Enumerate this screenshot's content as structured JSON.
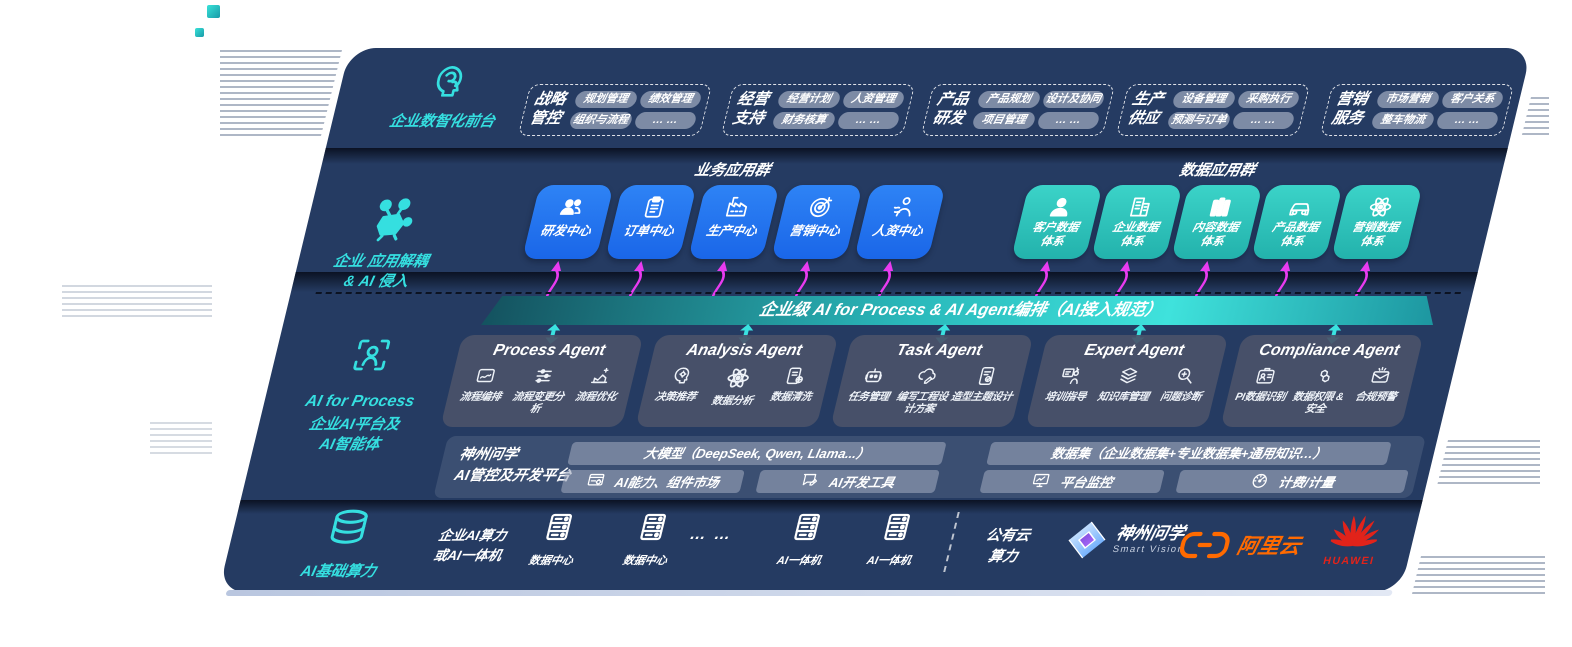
{
  "colors": {
    "panel_navy": "#253B62",
    "accent_cyan": "#35DFE0",
    "magenta_arrow": "#E83BF0",
    "blue_tile": "#1E6FF0",
    "teal_tile": "#2EC7BE",
    "chip_grey": "#96A1B8",
    "agent_card": "#4A5269",
    "aliyun_orange": "#FF6A00",
    "huawei_red": "#E2231A"
  },
  "front_office": {
    "icon": "brain-icon",
    "label": "企业数智化前台",
    "groups": [
      {
        "title": "战略\n管控",
        "chips": [
          "规划管理",
          "绩效管理",
          "组织与流程",
          "… …"
        ]
      },
      {
        "title": "经营\n支持",
        "chips": [
          "经营计划",
          "人资管理",
          "财务核算",
          "… …"
        ]
      },
      {
        "title": "产品\n研发",
        "chips": [
          "产品规划",
          "设计及协同",
          "项目管理",
          "… …"
        ]
      },
      {
        "title": "生产\n供应",
        "chips": [
          "设备管理",
          "采购执行",
          "预测与订单",
          "… …"
        ]
      },
      {
        "title": "营销\n服务",
        "chips": [
          "市场营销",
          "客户关系",
          "整车物流",
          "… …"
        ]
      }
    ]
  },
  "app_layer": {
    "icon": "molecule-icon",
    "label": "企业 应用解耦\n& AI 侵入",
    "business_group": {
      "title": "业务应用群",
      "tiles": [
        {
          "label": "研发中心",
          "icon": "team-icon"
        },
        {
          "label": "订单中心",
          "icon": "clipboard-icon"
        },
        {
          "label": "生产中心",
          "icon": "factory-icon"
        },
        {
          "label": "营销中心",
          "icon": "target-icon"
        },
        {
          "label": "人资中心",
          "icon": "hr-icon"
        }
      ]
    },
    "data_group": {
      "title": "数据应用群",
      "tiles": [
        {
          "label": "客户数据\n体系",
          "icon": "user-icon"
        },
        {
          "label": "企业数据\n体系",
          "icon": "building-icon"
        },
        {
          "label": "内容数据\n体系",
          "icon": "books-icon"
        },
        {
          "label": "产品数据\n体系",
          "icon": "car-icon"
        },
        {
          "label": "营销数据\n体系",
          "icon": "atom-icon"
        }
      ]
    }
  },
  "ai_bus": {
    "label": "企业级 AI for Process & AI Agent编排（AI接入规范）"
  },
  "ai_layer": {
    "icon": "scan-person-icon",
    "label_en": "AI for Process",
    "label_cn": "企业AI平台及\nAI智能体",
    "agents": [
      {
        "name": "Process Agent",
        "items": [
          {
            "label": "流程编排",
            "icon": "flow-icon"
          },
          {
            "label": "流程变更分析",
            "icon": "sliders-icon"
          },
          {
            "label": "流程优化",
            "icon": "optimize-icon"
          }
        ]
      },
      {
        "name": "Analysis Agent",
        "items": [
          {
            "label": "决策推荐",
            "icon": "head-gear-icon"
          },
          {
            "label": "数据分析",
            "icon": "atom-icon"
          },
          {
            "label": "数据清洗",
            "icon": "doc-gear-icon"
          }
        ]
      },
      {
        "name": "Task Agent",
        "items": [
          {
            "label": "任务管理",
            "icon": "robot-icon"
          },
          {
            "label": "编写工程设计方案",
            "icon": "cloud-pen-icon"
          },
          {
            "label": "造型主题设计",
            "icon": "tablet-check-icon"
          }
        ]
      },
      {
        "name": "Expert Agent",
        "items": [
          {
            "label": "培训指导",
            "icon": "training-icon"
          },
          {
            "label": "知识库管理",
            "icon": "layers-icon"
          },
          {
            "label": "问题诊断",
            "icon": "diagnose-icon"
          }
        ]
      },
      {
        "name": "Compliance Agent",
        "items": [
          {
            "label": "PI数据识别",
            "icon": "id-card-icon"
          },
          {
            "label": "数据权限 &\n安全",
            "icon": "shield-icon"
          },
          {
            "label": "合规预警",
            "icon": "mail-alert-icon"
          }
        ]
      }
    ]
  },
  "platform": {
    "label": "神州问学\nAI管控及开发平台",
    "model_bar": "大模型（DeepSeek, Qwen, Llama...）",
    "dataset_bar": "数据集（企业数据集+专业数据集+通用知识…）",
    "cells": [
      {
        "label": "AI能力、组件市场",
        "icon": "component-market-icon"
      },
      {
        "label": "AI开发工具",
        "icon": "dev-tools-icon"
      },
      {
        "label": "平台监控",
        "icon": "monitor-icon"
      },
      {
        "label": "计费/计量",
        "icon": "meter-icon"
      }
    ]
  },
  "compute": {
    "icon": "database-icon",
    "label": "AI基础算力",
    "enterprise": "企业AI算力\n或AI一体机",
    "ellipsis": "… …",
    "nodes": [
      {
        "label": "数据中心",
        "icon": "server-icon"
      },
      {
        "label": "数据中心",
        "icon": "server-icon"
      },
      {
        "label": "AI一体机",
        "icon": "server-icon"
      },
      {
        "label": "AI一体机",
        "icon": "server-icon"
      }
    ],
    "public_cloud": "公有云\n算力",
    "logos": {
      "sv_cn": "神州问学",
      "sv_en": "Smart Vision",
      "aliyun": "阿里云",
      "huawei": "HUAWEI"
    }
  }
}
